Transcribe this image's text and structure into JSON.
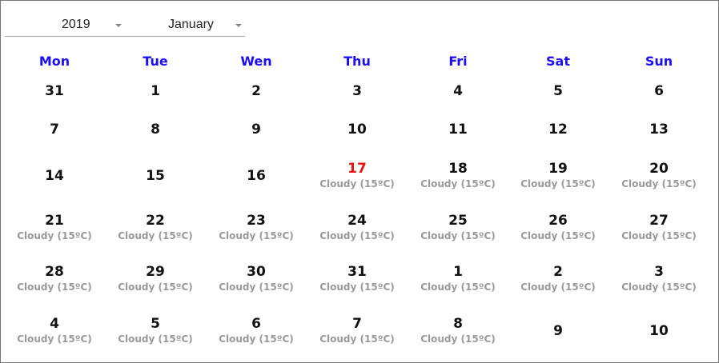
{
  "year_select": {
    "value": "2019"
  },
  "month_select": {
    "value": "January"
  },
  "weekdays": [
    "Mon",
    "Tue",
    "Wen",
    "Thu",
    "Fri",
    "Sat",
    "Sun"
  ],
  "weeks": [
    [
      {
        "day": "31",
        "weather": ""
      },
      {
        "day": "1",
        "weather": ""
      },
      {
        "day": "2",
        "weather": ""
      },
      {
        "day": "3",
        "weather": ""
      },
      {
        "day": "4",
        "weather": ""
      },
      {
        "day": "5",
        "weather": ""
      },
      {
        "day": "6",
        "weather": ""
      }
    ],
    [
      {
        "day": "7",
        "weather": ""
      },
      {
        "day": "8",
        "weather": ""
      },
      {
        "day": "9",
        "weather": ""
      },
      {
        "day": "10",
        "weather": ""
      },
      {
        "day": "11",
        "weather": ""
      },
      {
        "day": "12",
        "weather": ""
      },
      {
        "day": "13",
        "weather": ""
      }
    ],
    [
      {
        "day": "14",
        "weather": ""
      },
      {
        "day": "15",
        "weather": ""
      },
      {
        "day": "16",
        "weather": ""
      },
      {
        "day": "17",
        "weather": "Cloudy (15ºC)",
        "today": true
      },
      {
        "day": "18",
        "weather": "Cloudy (15ºC)"
      },
      {
        "day": "19",
        "weather": "Cloudy (15ºC)"
      },
      {
        "day": "20",
        "weather": "Cloudy (15ºC)"
      }
    ],
    [
      {
        "day": "21",
        "weather": "Cloudy (15ºC)"
      },
      {
        "day": "22",
        "weather": "Cloudy (15ºC)"
      },
      {
        "day": "23",
        "weather": "Cloudy (15ºC)"
      },
      {
        "day": "24",
        "weather": "Cloudy (15ºC)"
      },
      {
        "day": "25",
        "weather": "Cloudy (15ºC)"
      },
      {
        "day": "26",
        "weather": "Cloudy (15ºC)"
      },
      {
        "day": "27",
        "weather": "Cloudy (15ºC)"
      }
    ],
    [
      {
        "day": "28",
        "weather": "Cloudy (15ºC)"
      },
      {
        "day": "29",
        "weather": "Cloudy (15ºC)"
      },
      {
        "day": "30",
        "weather": "Cloudy (15ºC)"
      },
      {
        "day": "31",
        "weather": "Cloudy (15ºC)"
      },
      {
        "day": "1",
        "weather": "Cloudy (15ºC)"
      },
      {
        "day": "2",
        "weather": "Cloudy (15ºC)"
      },
      {
        "day": "3",
        "weather": "Cloudy (15ºC)"
      }
    ],
    [
      {
        "day": "4",
        "weather": "Cloudy (15ºC)"
      },
      {
        "day": "5",
        "weather": "Cloudy (15ºC)"
      },
      {
        "day": "6",
        "weather": "Cloudy (15ºC)"
      },
      {
        "day": "7",
        "weather": "Cloudy (15ºC)"
      },
      {
        "day": "8",
        "weather": "Cloudy (15ºC)"
      },
      {
        "day": "9",
        "weather": ""
      },
      {
        "day": "10",
        "weather": ""
      }
    ]
  ],
  "colors": {
    "weekday": "#1a0dff",
    "today": "#e11111",
    "weather": "#999999"
  }
}
